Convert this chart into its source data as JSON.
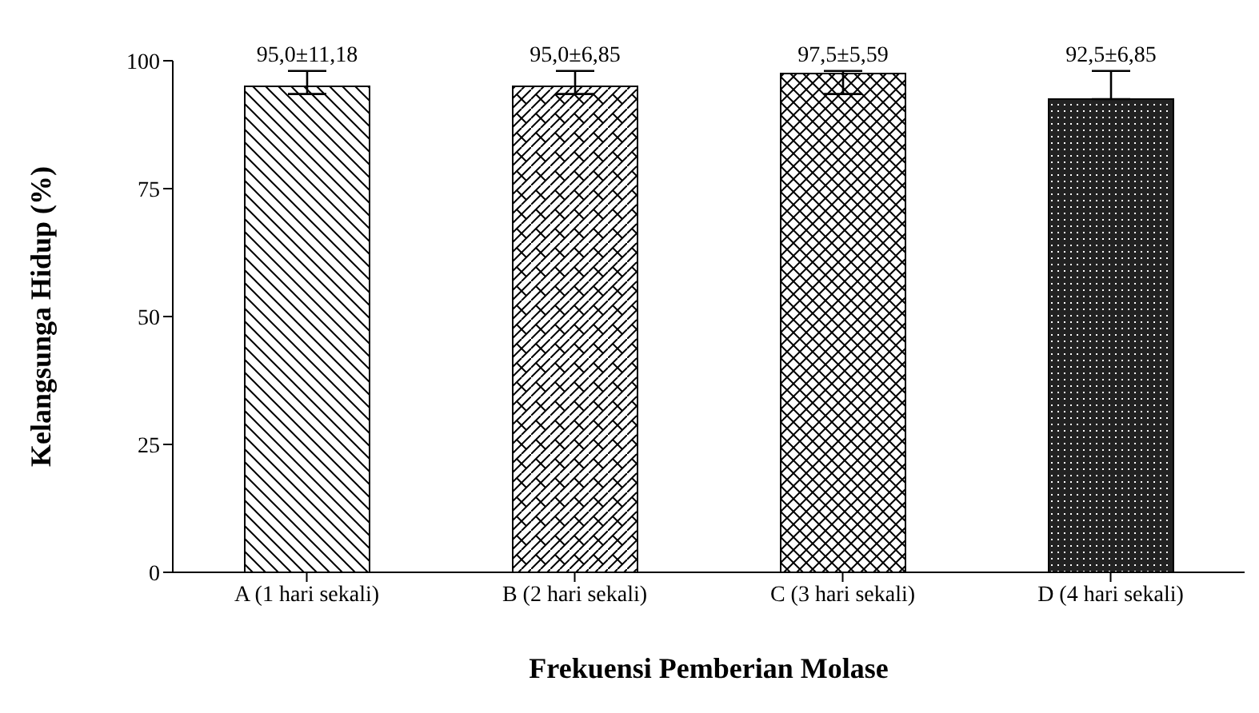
{
  "chart_data": {
    "type": "bar",
    "xlabel": "Frekuensi Pemberian  Molase",
    "ylabel": "Kelangsunga Hidup (%)",
    "categories": [
      "A (1 hari sekali)",
      "B (2 hari sekali)",
      "C (3 hari sekali)",
      "D (4 hari sekali)"
    ],
    "values": [
      95.0,
      95.0,
      97.5,
      92.5
    ],
    "errors": [
      [
        93.5,
        98
      ],
      [
        93.5,
        98
      ],
      [
        93.5,
        98
      ],
      [
        92.5,
        98
      ]
    ],
    "value_labels": [
      "95,0±11,18",
      "95,0±6,85",
      "97,5±5,59",
      "92,5±6,85"
    ],
    "ylim": [
      0,
      100
    ],
    "yticks": [
      0,
      25,
      50,
      75,
      100
    ],
    "grid": false,
    "legend": false
  }
}
